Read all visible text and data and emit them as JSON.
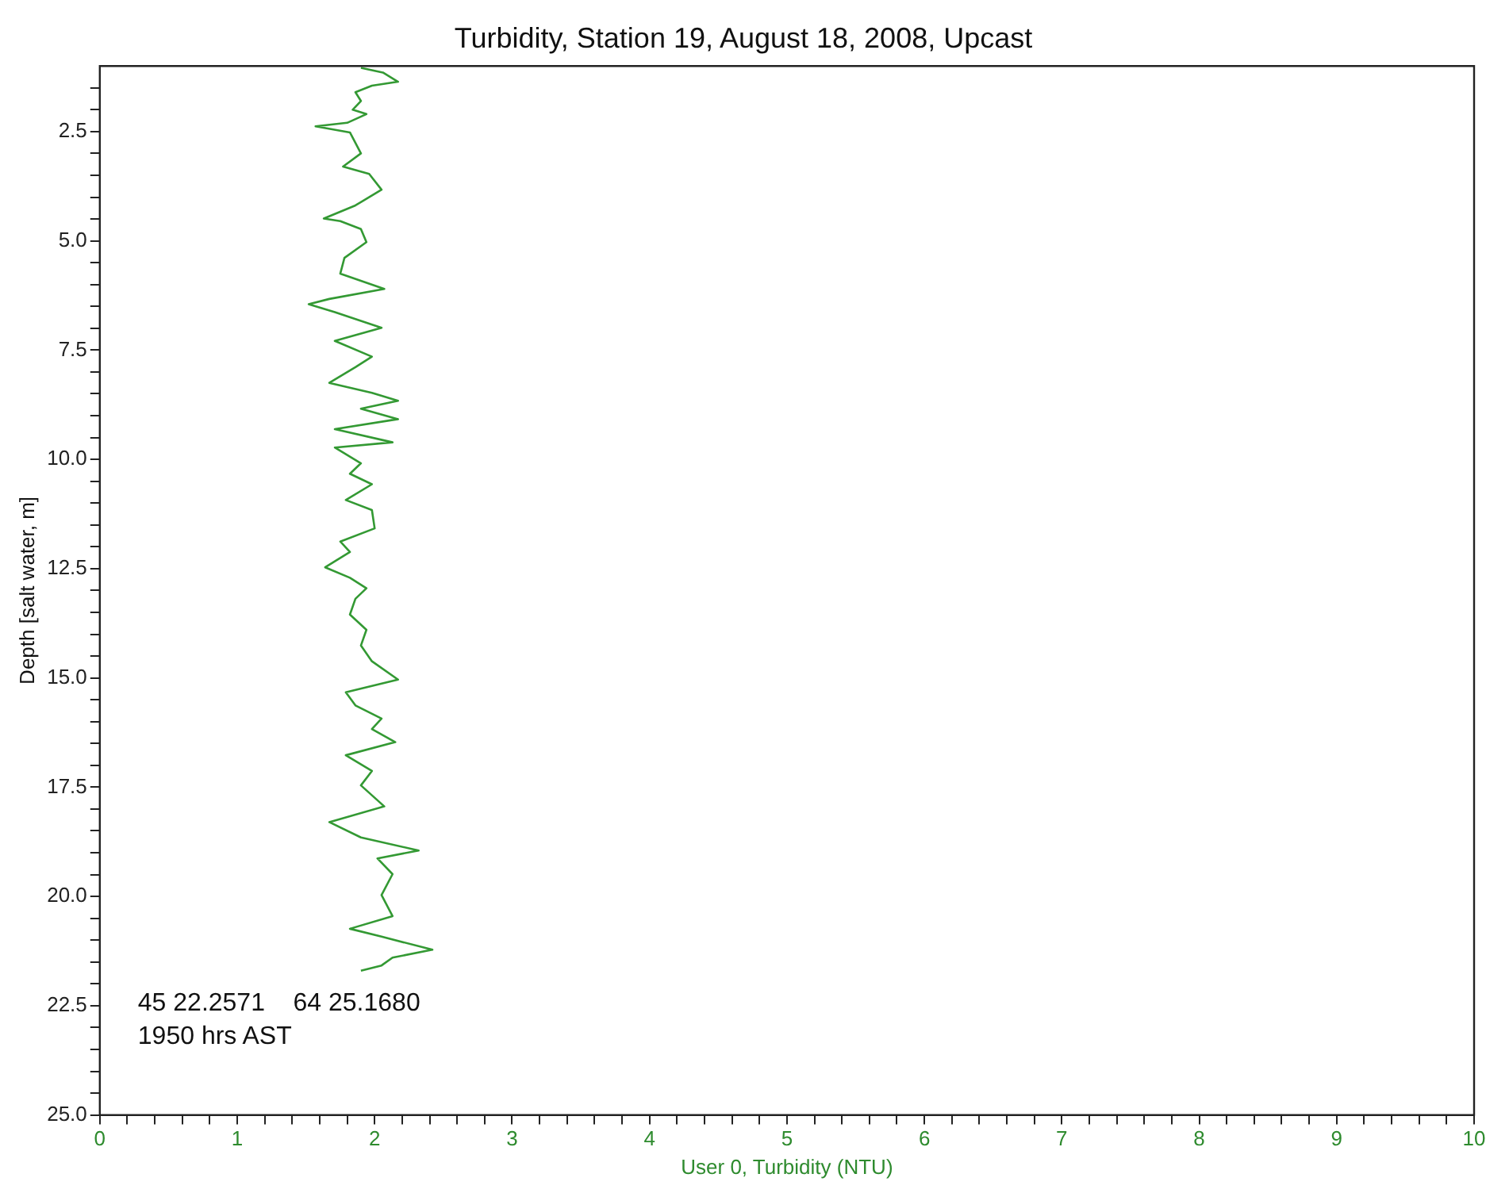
{
  "chart_data": {
    "type": "line",
    "title": "Turbidity, Station 19, August 18, 2008, Upcast",
    "xlabel": "User 0, Turbidity (NTU)",
    "ylabel": "Depth [salt water, m]",
    "annotations": [
      "45 22.2571    64 25.1680",
      "1950 hrs AST"
    ],
    "series": [
      {
        "color": "#339933",
        "x": [
          1.9,
          2.06,
          2.17,
          1.98,
          1.86,
          1.9,
          1.84,
          1.94,
          1.8,
          1.57,
          1.82,
          1.9,
          1.77,
          1.96,
          2.05,
          1.86,
          1.63,
          1.75,
          1.9,
          1.94,
          1.78,
          1.75,
          2.07,
          1.67,
          1.52,
          1.71,
          2.05,
          1.71,
          1.98,
          1.86,
          1.67,
          1.98,
          2.17,
          1.9,
          2.17,
          1.71,
          2.13,
          1.71,
          1.9,
          1.82,
          1.98,
          1.79,
          1.98,
          2.0,
          1.75,
          1.82,
          1.64,
          1.82,
          1.94,
          1.86,
          1.82,
          1.94,
          1.9,
          1.98,
          2.17,
          1.79,
          1.86,
          2.05,
          1.98,
          2.15,
          1.79,
          1.98,
          1.9,
          2.07,
          1.67,
          1.9,
          2.32,
          2.02,
          2.13,
          2.05,
          2.13,
          1.82,
          2.05,
          2.42,
          2.13,
          2.05,
          1.9
        ],
        "values": [
          1.04,
          1.15,
          1.36,
          1.45,
          1.6,
          1.8,
          2.0,
          2.1,
          2.3,
          2.38,
          2.52,
          3.0,
          3.3,
          3.47,
          3.83,
          4.19,
          4.49,
          4.55,
          4.73,
          5.03,
          5.39,
          5.75,
          6.1,
          6.33,
          6.45,
          6.63,
          6.99,
          7.29,
          7.65,
          7.89,
          8.25,
          8.48,
          8.66,
          8.84,
          9.08,
          9.31,
          9.61,
          9.73,
          10.09,
          10.33,
          10.57,
          10.93,
          11.16,
          11.58,
          11.88,
          12.12,
          12.47,
          12.71,
          12.95,
          13.19,
          13.55,
          13.9,
          14.26,
          14.62,
          15.04,
          15.33,
          15.63,
          15.93,
          16.17,
          16.47,
          16.77,
          17.13,
          17.46,
          17.94,
          18.3,
          18.65,
          18.95,
          19.13,
          19.49,
          19.97,
          20.45,
          20.74,
          20.92,
          21.22,
          21.4,
          21.58,
          21.7
        ]
      }
    ],
    "xlim": [
      0,
      10
    ],
    "ylim": [
      25,
      1
    ],
    "xticks": [
      0,
      {
        "value": 0.2,
        "label": null
      },
      {
        "value": 0.4,
        "label": null
      },
      {
        "value": 0.6,
        "label": null
      },
      {
        "value": 0.8,
        "label": null
      },
      1,
      {
        "value": 1.2,
        "label": null
      },
      {
        "value": 1.4,
        "label": null
      },
      {
        "value": 1.6,
        "label": null
      },
      {
        "value": 1.8,
        "label": null
      },
      2,
      {
        "value": 2.2,
        "label": null
      },
      {
        "value": 2.4,
        "label": null
      },
      {
        "value": 2.6,
        "label": null
      },
      {
        "value": 2.8,
        "label": null
      },
      3,
      {
        "value": 3.2,
        "label": null
      },
      {
        "value": 3.4,
        "label": null
      },
      {
        "value": 3.6,
        "label": null
      },
      {
        "value": 3.8,
        "label": null
      },
      4,
      {
        "value": 4.2,
        "label": null
      },
      {
        "value": 4.4,
        "label": null
      },
      {
        "value": 4.6,
        "label": null
      },
      {
        "value": 4.8,
        "label": null
      },
      5,
      {
        "value": 5.2,
        "label": null
      },
      {
        "value": 5.4,
        "label": null
      },
      {
        "value": 5.6,
        "label": null
      },
      {
        "value": 5.8,
        "label": null
      },
      6,
      {
        "value": 6.2,
        "label": null
      },
      {
        "value": 6.4,
        "label": null
      },
      {
        "value": 6.6,
        "label": null
      },
      {
        "value": 6.8,
        "label": null
      },
      7,
      {
        "value": 7.2,
        "label": null
      },
      {
        "value": 7.4,
        "label": null
      },
      {
        "value": 7.6,
        "label": null
      },
      {
        "value": 7.8,
        "label": null
      },
      8,
      {
        "value": 8.2,
        "label": null
      },
      {
        "value": 8.4,
        "label": null
      },
      {
        "value": 8.6,
        "label": null
      },
      {
        "value": 8.8,
        "label": null
      },
      9,
      {
        "value": 9.2,
        "label": null
      },
      {
        "value": 9.4,
        "label": null
      },
      {
        "value": 9.6,
        "label": null
      },
      {
        "value": 9.8,
        "label": null
      },
      10
    ],
    "yticks": [
      {
        "value": 1.5,
        "label": null
      },
      {
        "value": 2.0,
        "label": null
      },
      {
        "value": 2.5,
        "label": "2.5"
      },
      {
        "value": 3.0,
        "label": null
      },
      {
        "value": 3.5,
        "label": null
      },
      {
        "value": 4.0,
        "label": null
      },
      {
        "value": 4.5,
        "label": null
      },
      {
        "value": 5.0,
        "label": "5.0"
      },
      {
        "value": 5.5,
        "label": null
      },
      {
        "value": 6.0,
        "label": null
      },
      {
        "value": 6.5,
        "label": null
      },
      {
        "value": 7.0,
        "label": null
      },
      {
        "value": 7.5,
        "label": "7.5"
      },
      {
        "value": 8.0,
        "label": null
      },
      {
        "value": 8.5,
        "label": null
      },
      {
        "value": 9.0,
        "label": null
      },
      {
        "value": 9.5,
        "label": null
      },
      {
        "value": 10.0,
        "label": "10.0"
      },
      {
        "value": 10.5,
        "label": null
      },
      {
        "value": 11.0,
        "label": null
      },
      {
        "value": 11.5,
        "label": null
      },
      {
        "value": 12.0,
        "label": null
      },
      {
        "value": 12.5,
        "label": "12.5"
      },
      {
        "value": 13.0,
        "label": null
      },
      {
        "value": 13.5,
        "label": null
      },
      {
        "value": 14.0,
        "label": null
      },
      {
        "value": 14.5,
        "label": null
      },
      {
        "value": 15.0,
        "label": "15.0"
      },
      {
        "value": 15.5,
        "label": null
      },
      {
        "value": 16.0,
        "label": null
      },
      {
        "value": 16.5,
        "label": null
      },
      {
        "value": 17.0,
        "label": null
      },
      {
        "value": 17.5,
        "label": "17.5"
      },
      {
        "value": 18.0,
        "label": null
      },
      {
        "value": 18.5,
        "label": null
      },
      {
        "value": 19.0,
        "label": null
      },
      {
        "value": 19.5,
        "label": null
      },
      {
        "value": 20.0,
        "label": "20.0"
      },
      {
        "value": 20.5,
        "label": null
      },
      {
        "value": 21.0,
        "label": null
      },
      {
        "value": 21.5,
        "label": null
      },
      {
        "value": 22.0,
        "label": null
      },
      {
        "value": 22.5,
        "label": "22.5"
      },
      {
        "value": 23.0,
        "label": null
      },
      {
        "value": 23.5,
        "label": null
      },
      {
        "value": 24.0,
        "label": null
      },
      {
        "value": 24.5,
        "label": null
      },
      {
        "value": 25.0,
        "label": "25.0"
      }
    ],
    "grid": false,
    "legend": false,
    "marker": "none",
    "line_style": "solid"
  }
}
